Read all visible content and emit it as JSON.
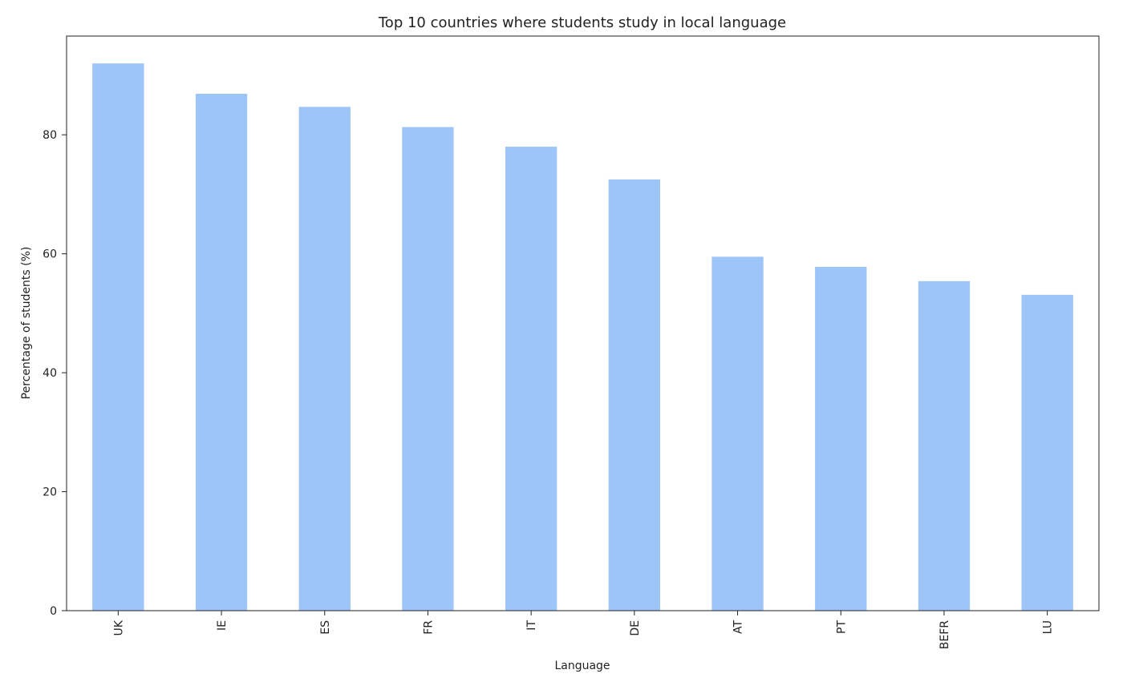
{
  "chart_data": {
    "type": "bar",
    "title": "Top 10 countries where students study in local language",
    "x_label": "Language",
    "y_label": "Percentage of students (%)",
    "categories": [
      "UK",
      "IE",
      "ES",
      "FR",
      "IT",
      "DE",
      "AT",
      "PT",
      "BEFR",
      "LU"
    ],
    "values": [
      92.0,
      86.9,
      84.7,
      81.3,
      78.0,
      72.5,
      59.5,
      57.8,
      55.4,
      53.1
    ],
    "color": "#9ec5f8",
    "ylim": [
      0,
      96.6
    ],
    "yticks": [
      0,
      20,
      40,
      60,
      80
    ],
    "grid": false
  }
}
